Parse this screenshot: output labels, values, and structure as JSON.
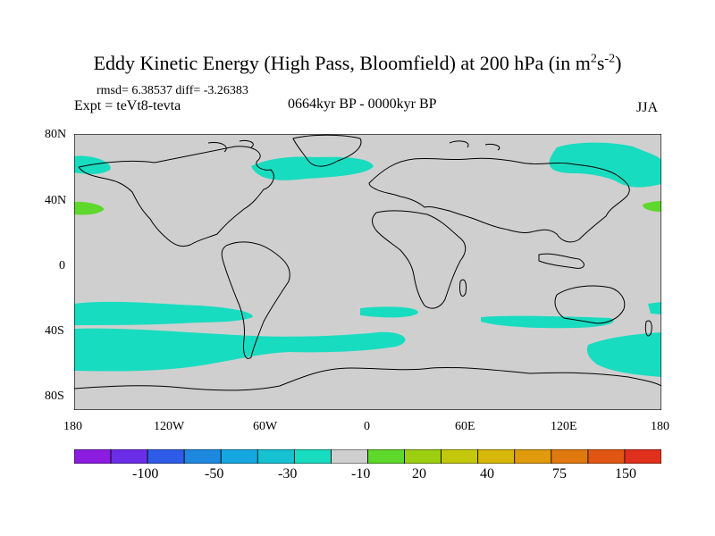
{
  "title": {
    "main": "Eddy Kinetic Energy (High Pass, Bloomfield) at 200 hPa (in m",
    "sup1": "2",
    "mid": "s",
    "sup2": "-2",
    "end": ")"
  },
  "stats": "rmsd= 6.38537 diff= -3.26383",
  "experiment": "Expt = teVt8-tevta",
  "period": "0664kyr BP - 0000kyr BP",
  "season": "JJA",
  "lat_labels": [
    "80N",
    "40N",
    "0",
    "40S",
    "80S"
  ],
  "lon_labels": [
    "180",
    "120W",
    "60W",
    "0",
    "60E",
    "120E",
    "180"
  ],
  "colorbar": {
    "colors": [
      "#8c1de0",
      "#6b2ee8",
      "#2e5ce8",
      "#1e88e0",
      "#15a8e0",
      "#16c2d2",
      "#18dcc0",
      "#cfcfcf",
      "#5fd82c",
      "#9ccf10",
      "#c4c80c",
      "#d8b80a",
      "#e09a0c",
      "#e07a10",
      "#e05612",
      "#e0301c"
    ],
    "labels": [
      "-100",
      "-50",
      "-30",
      "-10",
      "20",
      "40",
      "75",
      "150"
    ]
  },
  "colors": {
    "land_ocean_bg": "#cfcfcf",
    "cyan_region": "#18dcc0",
    "green_region": "#5fd82c"
  }
}
